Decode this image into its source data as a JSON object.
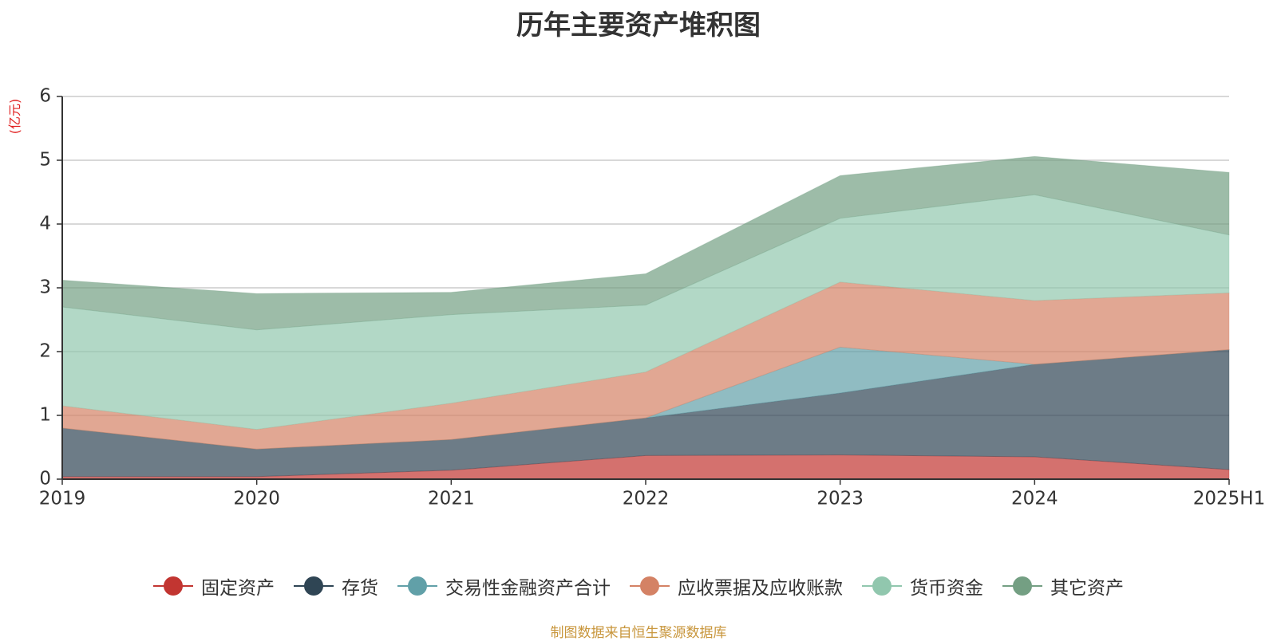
{
  "chart_data": {
    "type": "area",
    "stacked": true,
    "title": "历年主要资产堆积图",
    "unit_label": "(亿元)",
    "categories": [
      "2019",
      "2020",
      "2021",
      "2022",
      "2023",
      "2024",
      "2025H1"
    ],
    "ylim": [
      0,
      6
    ],
    "yticks": [
      "0",
      "1",
      "2",
      "3",
      "4",
      "5",
      "6"
    ],
    "grid": true,
    "legend_position": "bottom",
    "series": [
      {
        "name": "固定资产",
        "color": "#c23531",
        "values": [
          0.04,
          0.04,
          0.14,
          0.37,
          0.38,
          0.35,
          0.15
        ]
      },
      {
        "name": "存货",
        "color": "#2f4554",
        "values": [
          0.76,
          0.43,
          0.48,
          0.59,
          0.97,
          1.45,
          1.88
        ]
      },
      {
        "name": "交易性金融资产合计",
        "color": "#61a0a8",
        "values": [
          0.0,
          0.0,
          0.0,
          0.0,
          0.72,
          0.0,
          0.0
        ]
      },
      {
        "name": "应收票据及应收账款",
        "color": "#d48265",
        "values": [
          0.35,
          0.31,
          0.57,
          0.72,
          1.02,
          1.0,
          0.89
        ]
      },
      {
        "name": "货币资金",
        "color": "#91c7ae",
        "values": [
          1.55,
          1.56,
          1.39,
          1.05,
          1.0,
          1.66,
          0.91
        ]
      },
      {
        "name": "其它资产",
        "color": "#749f83",
        "values": [
          0.42,
          0.57,
          0.35,
          0.49,
          0.67,
          0.6,
          0.98
        ]
      }
    ]
  },
  "source_note": "制图数据来自恒生聚源数据库"
}
